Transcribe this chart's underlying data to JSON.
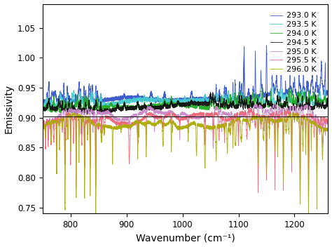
{
  "title": "",
  "xlabel": "Wavenumber (cm⁻¹)",
  "ylabel": "Emissivity",
  "xlim": [
    750,
    1260
  ],
  "ylim": [
    0.74,
    1.09
  ],
  "yticks": [
    0.75,
    0.8,
    0.85,
    0.9,
    0.95,
    1.0,
    1.05
  ],
  "xticks": [
    800,
    900,
    1000,
    1100,
    1200
  ],
  "series": [
    {
      "label": "293.0 K",
      "color": "#3355cc",
      "base": 0.932,
      "group": "upper"
    },
    {
      "label": "293.5 K",
      "color": "#44cccc",
      "base": 0.923,
      "group": "upper"
    },
    {
      "label": "294.0 K",
      "color": "#22aa22",
      "base": 0.919,
      "group": "upper"
    },
    {
      "label": "294.5 K",
      "color": "#111111",
      "base": 0.916,
      "group": "upper"
    },
    {
      "label": "295.0 K",
      "color": "#cc88cc",
      "base": 0.889,
      "group": "lower"
    },
    {
      "label": "295.5 K",
      "color": "#ee6677",
      "base": 0.884,
      "group": "lower"
    },
    {
      "label": "296.0 K",
      "color": "#aaaa00",
      "base": 0.875,
      "group": "lower"
    }
  ],
  "background_color": "#ffffff",
  "legend_fontsize": 8,
  "axis_fontsize": 10,
  "tick_fontsize": 8.5,
  "linewidth": 0.6
}
